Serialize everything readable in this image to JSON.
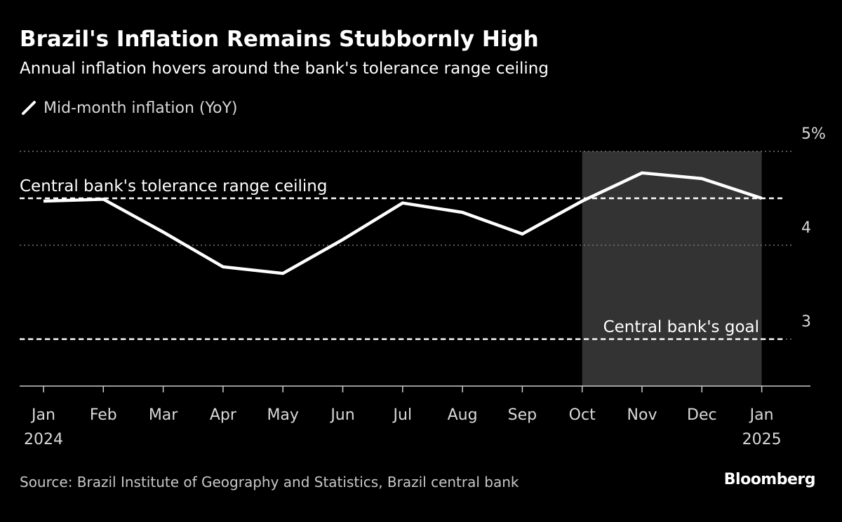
{
  "header": {
    "title": "Brazil's Inflation Remains Stubbornly High",
    "subtitle": "Annual inflation hovers around the bank's tolerance range ceiling"
  },
  "legend": {
    "label": "Mid-month inflation (YoY)",
    "icon": "line-swatch-icon"
  },
  "footer": {
    "source": "Source: Brazil Institute of Geography and Statistics, Brazil central bank",
    "brand": "Bloomberg"
  },
  "colors": {
    "background": "#000000",
    "line": "#ffffff",
    "highlight": "#333333",
    "grid": "#777777",
    "text": "#ffffff"
  },
  "chart_data": {
    "type": "line",
    "x": [
      "2024-01",
      "2024-02",
      "2024-03",
      "2024-04",
      "2024-05",
      "2024-06",
      "2024-07",
      "2024-08",
      "2024-09",
      "2024-10",
      "2024-11",
      "2024-12",
      "2025-01"
    ],
    "x_tick_labels": [
      {
        "month": "Jan",
        "year": "2024"
      },
      {
        "month": "Feb",
        "year": ""
      },
      {
        "month": "Mar",
        "year": ""
      },
      {
        "month": "Apr",
        "year": ""
      },
      {
        "month": "May",
        "year": ""
      },
      {
        "month": "Jun",
        "year": ""
      },
      {
        "month": "Jul",
        "year": ""
      },
      {
        "month": "Aug",
        "year": ""
      },
      {
        "month": "Sep",
        "year": ""
      },
      {
        "month": "Oct",
        "year": ""
      },
      {
        "month": "Nov",
        "year": ""
      },
      {
        "month": "Dec",
        "year": ""
      },
      {
        "month": "Jan",
        "year": "2025"
      }
    ],
    "series": [
      {
        "name": "Mid-month inflation (YoY)",
        "values": [
          4.47,
          4.49,
          4.14,
          3.77,
          3.7,
          4.06,
          4.45,
          4.35,
          4.12,
          4.47,
          4.77,
          4.71,
          4.5
        ]
      }
    ],
    "y_ticks": [
      {
        "value": 5,
        "label": "5%"
      },
      {
        "value": 4,
        "label": "4"
      },
      {
        "value": 3,
        "label": "3"
      }
    ],
    "ylim": [
      2.5,
      5.0
    ],
    "reference_lines": [
      {
        "value": 4.5,
        "label": "Central bank's tolerance range ceiling",
        "style": "dashed"
      },
      {
        "value": 3.0,
        "label": "Central bank's goal",
        "style": "dashed"
      }
    ],
    "highlight_range": [
      "2024-10",
      "2025-01"
    ],
    "grid": "horizontal-dotted",
    "legend_position": "top-left",
    "title": "Brazil's Inflation Remains Stubbornly High",
    "subtitle": "Annual inflation hovers around the bank's tolerance range ceiling",
    "xlabel": "",
    "ylabel": ""
  }
}
